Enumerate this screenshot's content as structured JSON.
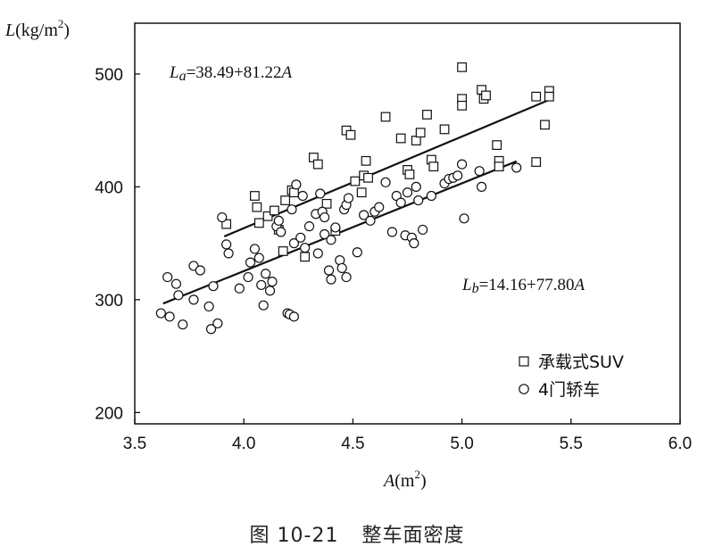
{
  "caption": {
    "label": "图 10-21",
    "title": "整车面密度"
  },
  "chart_data": {
    "type": "scatter",
    "xlabel": {
      "main": "A",
      "unit_open": "(m",
      "unit_sup": "2",
      "unit_close": ")"
    },
    "ylabel": {
      "main": "L",
      "unit_open": "(kg/m",
      "unit_sup": "2",
      "unit_close": ")"
    },
    "xlim": [
      3.5,
      6.0
    ],
    "ylim": [
      190,
      545
    ],
    "xticks": [
      3.5,
      4.0,
      4.5,
      5.0,
      5.5,
      6.0
    ],
    "xtick_labels": [
      "3.5",
      "4.0",
      "4.5",
      "5.0",
      "5.5",
      "6.0"
    ],
    "yticks": [
      200,
      300,
      400,
      500
    ],
    "ytick_labels": [
      "200",
      "300",
      "400",
      "500"
    ],
    "grid": false,
    "legend_position": "bottom-right",
    "series": [
      {
        "name": "承载式SUV",
        "marker": "square",
        "fit": {
          "intercept": 38.49,
          "slope": 81.22,
          "x_range": [
            3.91,
            5.4
          ]
        },
        "equation": {
          "lhs_main": "L",
          "lhs_sub": "a",
          "rhs": "=38.49+81.22",
          "rhs_var": "A"
        },
        "points": [
          [
            3.92,
            367
          ],
          [
            4.05,
            392
          ],
          [
            4.06,
            382
          ],
          [
            4.07,
            368
          ],
          [
            4.11,
            374
          ],
          [
            4.14,
            379
          ],
          [
            4.16,
            362
          ],
          [
            4.18,
            343
          ],
          [
            4.19,
            388
          ],
          [
            4.22,
            397
          ],
          [
            4.23,
            395
          ],
          [
            4.28,
            338
          ],
          [
            4.32,
            426
          ],
          [
            4.34,
            420
          ],
          [
            4.38,
            385
          ],
          [
            4.42,
            361
          ],
          [
            4.47,
            450
          ],
          [
            4.49,
            446
          ],
          [
            4.51,
            405
          ],
          [
            4.54,
            395
          ],
          [
            4.55,
            410
          ],
          [
            4.56,
            423
          ],
          [
            4.57,
            408
          ],
          [
            4.65,
            462
          ],
          [
            4.72,
            443
          ],
          [
            4.75,
            415
          ],
          [
            4.76,
            411
          ],
          [
            4.79,
            441
          ],
          [
            4.81,
            448
          ],
          [
            4.84,
            464
          ],
          [
            4.86,
            424
          ],
          [
            4.87,
            418
          ],
          [
            4.92,
            451
          ],
          [
            5.0,
            506
          ],
          [
            5.0,
            478
          ],
          [
            5.0,
            472
          ],
          [
            5.09,
            486
          ],
          [
            5.1,
            478
          ],
          [
            5.11,
            481
          ],
          [
            5.16,
            437
          ],
          [
            5.17,
            423
          ],
          [
            5.17,
            418
          ],
          [
            5.34,
            480
          ],
          [
            5.34,
            422
          ],
          [
            5.38,
            455
          ],
          [
            5.4,
            485
          ],
          [
            5.4,
            480
          ]
        ]
      },
      {
        "name": "4门轿车",
        "marker": "circle",
        "fit": {
          "intercept": 14.16,
          "slope": 77.8,
          "x_range": [
            3.63,
            5.25
          ]
        },
        "equation": {
          "lhs_main": "L",
          "lhs_sub": "b",
          "rhs": "=14.16+77.80",
          "rhs_var": "A"
        },
        "points": [
          [
            3.62,
            288
          ],
          [
            3.65,
            320
          ],
          [
            3.66,
            285
          ],
          [
            3.69,
            314
          ],
          [
            3.7,
            304
          ],
          [
            3.72,
            278
          ],
          [
            3.77,
            300
          ],
          [
            3.77,
            330
          ],
          [
            3.8,
            326
          ],
          [
            3.84,
            294
          ],
          [
            3.85,
            274
          ],
          [
            3.86,
            312
          ],
          [
            3.88,
            279
          ],
          [
            3.9,
            373
          ],
          [
            3.92,
            349
          ],
          [
            3.93,
            341
          ],
          [
            3.98,
            310
          ],
          [
            4.02,
            320
          ],
          [
            4.03,
            333
          ],
          [
            4.05,
            345
          ],
          [
            4.07,
            337
          ],
          [
            4.08,
            313
          ],
          [
            4.09,
            295
          ],
          [
            4.1,
            323
          ],
          [
            4.12,
            308
          ],
          [
            4.13,
            316
          ],
          [
            4.15,
            365
          ],
          [
            4.16,
            370
          ],
          [
            4.17,
            360
          ],
          [
            4.2,
            288
          ],
          [
            4.21,
            287
          ],
          [
            4.22,
            380
          ],
          [
            4.23,
            285
          ],
          [
            4.23,
            350
          ],
          [
            4.24,
            402
          ],
          [
            4.26,
            355
          ],
          [
            4.27,
            392
          ],
          [
            4.28,
            346
          ],
          [
            4.3,
            365
          ],
          [
            4.33,
            376
          ],
          [
            4.34,
            341
          ],
          [
            4.35,
            394
          ],
          [
            4.36,
            378
          ],
          [
            4.37,
            358
          ],
          [
            4.37,
            373
          ],
          [
            4.39,
            326
          ],
          [
            4.4,
            318
          ],
          [
            4.4,
            353
          ],
          [
            4.42,
            364
          ],
          [
            4.44,
            335
          ],
          [
            4.45,
            328
          ],
          [
            4.46,
            380
          ],
          [
            4.47,
            320
          ],
          [
            4.47,
            384
          ],
          [
            4.48,
            390
          ],
          [
            4.52,
            342
          ],
          [
            4.55,
            375
          ],
          [
            4.58,
            370
          ],
          [
            4.6,
            378
          ],
          [
            4.62,
            382
          ],
          [
            4.65,
            404
          ],
          [
            4.68,
            360
          ],
          [
            4.7,
            392
          ],
          [
            4.72,
            386
          ],
          [
            4.74,
            357
          ],
          [
            4.75,
            395
          ],
          [
            4.77,
            355
          ],
          [
            4.78,
            350
          ],
          [
            4.79,
            400
          ],
          [
            4.8,
            388
          ],
          [
            4.82,
            362
          ],
          [
            4.86,
            392
          ],
          [
            4.92,
            403
          ],
          [
            4.94,
            407
          ],
          [
            4.96,
            408
          ],
          [
            4.98,
            410
          ],
          [
            5.0,
            420
          ],
          [
            5.01,
            372
          ],
          [
            5.08,
            414
          ],
          [
            5.09,
            400
          ],
          [
            5.25,
            417
          ]
        ]
      }
    ]
  }
}
